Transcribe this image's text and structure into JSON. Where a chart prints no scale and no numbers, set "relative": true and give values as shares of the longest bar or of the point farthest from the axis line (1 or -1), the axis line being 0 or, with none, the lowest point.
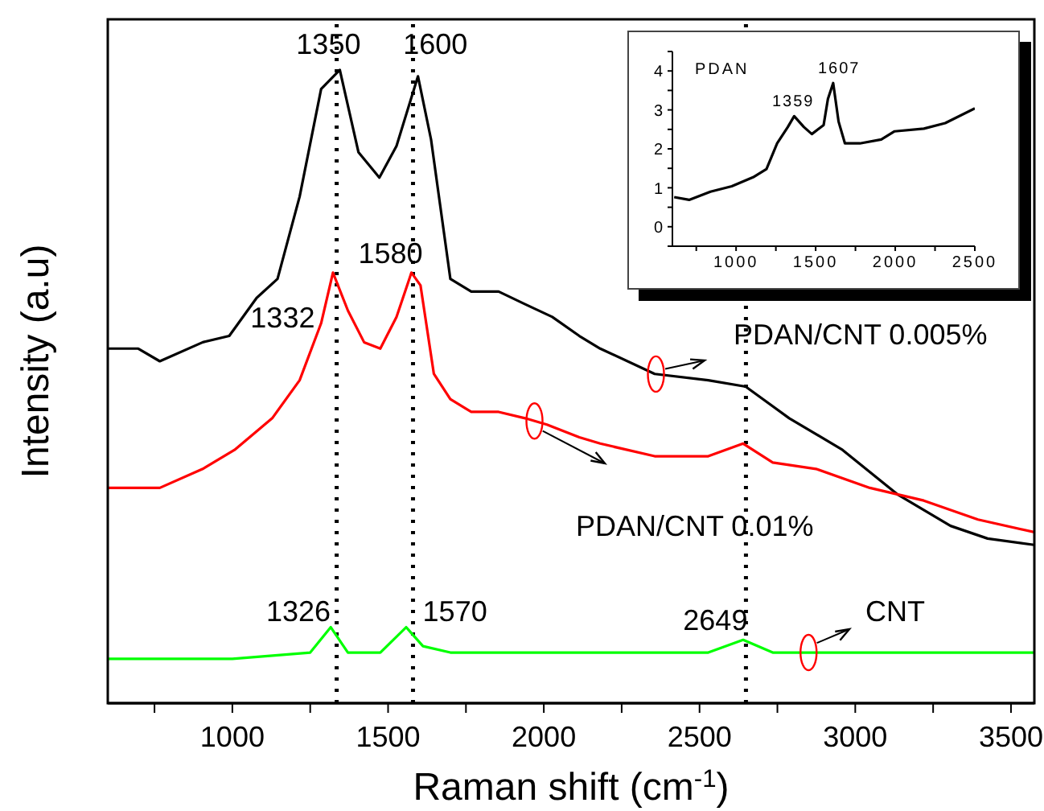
{
  "chart_data": [
    {
      "type": "line",
      "relative": true,
      "xlabel": "Raman shift (cm$^{-1}$)",
      "ylabel": "Intensity (a.u)",
      "xlim": [
        600,
        3575
      ],
      "xticks": [
        {
          "value": 750,
          "label": null
        },
        1000,
        {
          "value": 1250,
          "label": null
        },
        1500,
        {
          "value": 1750,
          "label": null
        },
        2000,
        {
          "value": 2250,
          "label": null
        },
        2500,
        {
          "value": 2750,
          "label": null
        },
        3000,
        {
          "value": 3250,
          "label": null
        },
        3500
      ],
      "legend": false,
      "grid": false,
      "marker": "none",
      "line_style": "solid",
      "series": [
        {
          "name": "PDAN/CNT 0.005%",
          "color": "#000000",
          "x": [
            600,
            698,
            767,
            905,
            990,
            1078,
            1145,
            1216,
            1285,
            1345,
            1405,
            1472,
            1527,
            1596,
            1638,
            1700,
            1767,
            1855,
            1940,
            2027,
            2114,
            2181,
            2356,
            2528,
            2648,
            2788,
            2959,
            3135,
            3306,
            3425,
            3575
          ],
          "values": [
            0.56,
            0.56,
            0.54,
            0.57,
            0.58,
            0.64,
            0.67,
            0.8,
            0.97,
            1.0,
            0.87,
            0.83,
            0.88,
            0.99,
            0.89,
            0.67,
            0.65,
            0.65,
            0.63,
            0.61,
            0.58,
            0.56,
            0.52,
            0.51,
            0.5,
            0.45,
            0.4,
            0.33,
            0.28,
            0.26,
            0.25
          ]
        },
        {
          "name": "PDAN/CNT 0.01%",
          "color": "#ff0000",
          "x": [
            600,
            698,
            767,
            905,
            1007,
            1128,
            1216,
            1285,
            1323,
            1371,
            1423,
            1475,
            1527,
            1575,
            1604,
            1647,
            1700,
            1767,
            1855,
            1940,
            2010,
            2114,
            2181,
            2356,
            2528,
            2640,
            2735,
            2874,
            3047,
            3220,
            3394,
            3575
          ],
          "values": [
            0.34,
            0.34,
            0.34,
            0.37,
            0.4,
            0.45,
            0.51,
            0.6,
            0.68,
            0.62,
            0.57,
            0.56,
            0.61,
            0.68,
            0.66,
            0.52,
            0.48,
            0.46,
            0.46,
            0.45,
            0.44,
            0.42,
            0.41,
            0.39,
            0.39,
            0.41,
            0.38,
            0.37,
            0.34,
            0.32,
            0.29,
            0.27
          ]
        },
        {
          "name": "CNT",
          "color": "#00ff00",
          "x": [
            600,
            1000,
            1250,
            1316,
            1371,
            1475,
            1558,
            1612,
            1700,
            2114,
            2528,
            2640,
            2735,
            3000,
            3575
          ],
          "values": [
            0.07,
            0.07,
            0.08,
            0.12,
            0.08,
            0.08,
            0.12,
            0.09,
            0.08,
            0.08,
            0.08,
            0.1,
            0.08,
            0.08,
            0.08
          ]
        }
      ],
      "ref_lines": [
        {
          "axis": "x",
          "value": 1335,
          "line_style": "dotted",
          "color": "#000000"
        },
        {
          "axis": "x",
          "value": 1580,
          "line_style": "dotted",
          "color": "#000000"
        },
        {
          "axis": "x",
          "value": 2649,
          "line_style": "dotted",
          "color": "#000000"
        }
      ],
      "annotations": [
        {
          "text": "1350",
          "x": 1350,
          "y": 1.0
        },
        {
          "text": "1600",
          "x": 1600,
          "y": 0.99
        },
        {
          "text": "1332",
          "x": 1332,
          "y": 0.68
        },
        {
          "text": "1580",
          "x": 1580,
          "y": 0.68
        },
        {
          "text": "1326",
          "x": 1326,
          "y": 0.12
        },
        {
          "text": "1570",
          "x": 1570,
          "y": 0.12
        },
        {
          "text": "2649",
          "x": 2649,
          "y": 0.1
        }
      ]
    },
    {
      "type": "line",
      "xlim": [
        600,
        2500
      ],
      "xticks": [
        {
          "value": 750,
          "label": null
        },
        1000,
        {
          "value": 1250,
          "label": null
        },
        1500,
        {
          "value": 1750,
          "label": null
        },
        2000,
        {
          "value": 2250,
          "label": null
        },
        2500
      ],
      "ylim": [
        -0.5,
        4.5
      ],
      "yticks": [
        {
          "value": -0.5,
          "label": null
        },
        0,
        {
          "value": 0.5,
          "label": null
        },
        1,
        {
          "value": 1.5,
          "label": null
        },
        2,
        {
          "value": 2.5,
          "label": null
        },
        3,
        {
          "value": 3.5,
          "label": null
        },
        4,
        {
          "value": 4.5,
          "label": null
        }
      ],
      "legend": false,
      "grid": false,
      "marker": "none",
      "line_style": "solid",
      "series": [
        {
          "name": "PDAN",
          "color": "#000000",
          "x": [
            611,
            705,
            839,
            973,
            1107,
            1191,
            1258,
            1325,
            1365,
            1426,
            1476,
            1550,
            1577,
            1610,
            1644,
            1684,
            1778,
            1912,
            1996,
            2180,
            2314,
            2500
          ],
          "values": [
            0.76,
            0.69,
            0.9,
            1.04,
            1.27,
            1.48,
            2.14,
            2.56,
            2.84,
            2.56,
            2.38,
            2.61,
            3.28,
            3.69,
            2.7,
            2.14,
            2.14,
            2.24,
            2.45,
            2.52,
            2.66,
            3.04
          ]
        }
      ],
      "annotations": [
        {
          "text": "1359",
          "x": 1359,
          "y": 2.84
        },
        {
          "text": "1607",
          "x": 1607,
          "y": 3.69
        }
      ]
    }
  ]
}
